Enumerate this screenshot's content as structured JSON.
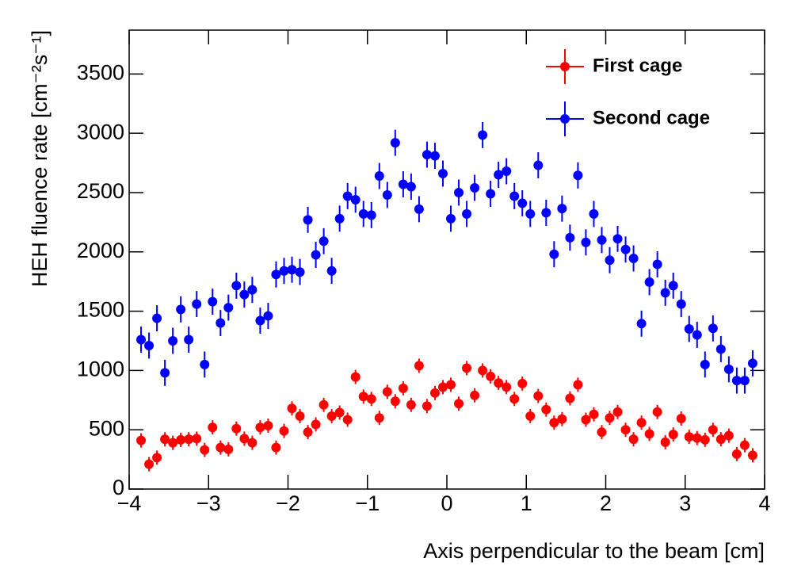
{
  "chart_data": {
    "type": "scatter",
    "x_label": "Axis perpendicular to the beam [cm]",
    "y_label": "HEH fluence rate [cm⁻²s⁻¹]",
    "xlim": [
      -4,
      4
    ],
    "ylim": [
      0,
      3870
    ],
    "xticks": [
      {
        "value": -4,
        "label": "−4"
      },
      {
        "value": -3,
        "label": "−3"
      },
      {
        "value": -2,
        "label": "−2"
      },
      {
        "value": -1,
        "label": "−1"
      },
      0,
      1,
      2,
      3,
      4
    ],
    "yticks": [
      0,
      500,
      1000,
      1500,
      2000,
      2500,
      3000,
      3500
    ],
    "x": [
      -3.85,
      -3.75,
      -3.65,
      -3.55,
      -3.45,
      -3.35,
      -3.25,
      -3.15,
      -3.05,
      -2.95,
      -2.85,
      -2.75,
      -2.65,
      -2.55,
      -2.45,
      -2.35,
      -2.25,
      -2.15,
      -2.05,
      -1.95,
      -1.85,
      -1.75,
      -1.65,
      -1.55,
      -1.45,
      -1.35,
      -1.25,
      -1.15,
      -1.05,
      -0.95,
      -0.85,
      -0.75,
      -0.65,
      -0.55,
      -0.45,
      -0.35,
      -0.25,
      -0.15,
      -0.05,
      0.05,
      0.15,
      0.25,
      0.35,
      0.45,
      0.55,
      0.65,
      0.75,
      0.85,
      0.95,
      1.05,
      1.15,
      1.25,
      1.35,
      1.45,
      1.55,
      1.65,
      1.75,
      1.85,
      1.95,
      2.05,
      2.15,
      2.25,
      2.35,
      2.45,
      2.55,
      2.65,
      2.75,
      2.85,
      2.95,
      3.05,
      3.15,
      3.25,
      3.35,
      3.45,
      3.55,
      3.65,
      3.75,
      3.85
    ],
    "legend": "upper right",
    "series": [
      {
        "name": "First cage",
        "color": "#ff0000",
        "error": 60,
        "values": [
          410,
          210,
          265,
          420,
          390,
          415,
          420,
          425,
          330,
          520,
          350,
          335,
          510,
          425,
          390,
          520,
          535,
          350,
          490,
          680,
          615,
          480,
          545,
          710,
          615,
          645,
          585,
          945,
          780,
          760,
          600,
          820,
          740,
          850,
          710,
          1040,
          700,
          810,
          860,
          880,
          720,
          1020,
          790,
          1000,
          950,
          895,
          860,
          760,
          890,
          615,
          785,
          670,
          560,
          590,
          765,
          880,
          585,
          630,
          480,
          600,
          650,
          500,
          420,
          560,
          465,
          650,
          395,
          460,
          595,
          440,
          430,
          415,
          500,
          420,
          450,
          295,
          370,
          285
        ]
      },
      {
        "name": "Second cage",
        "color": "#0000ff",
        "error": 110,
        "values": [
          1260,
          1210,
          1440,
          980,
          1250,
          1515,
          1260,
          1560,
          1050,
          1580,
          1400,
          1530,
          1715,
          1640,
          1680,
          1420,
          1460,
          1810,
          1840,
          1850,
          1830,
          2270,
          1975,
          2090,
          1840,
          2280,
          2470,
          2440,
          2320,
          2310,
          2640,
          2480,
          2920,
          2570,
          2550,
          2360,
          2820,
          2810,
          2660,
          2280,
          2500,
          2320,
          2540,
          2985,
          2490,
          2650,
          2680,
          2470,
          2410,
          2320,
          2730,
          2330,
          1980,
          2365,
          2120,
          2645,
          2080,
          2320,
          2100,
          1930,
          2110,
          2020,
          1945,
          1395,
          1745,
          1895,
          1655,
          1715,
          1560,
          1350,
          1300,
          1050,
          1355,
          1180,
          1010,
          915,
          915,
          1060
        ]
      }
    ]
  }
}
